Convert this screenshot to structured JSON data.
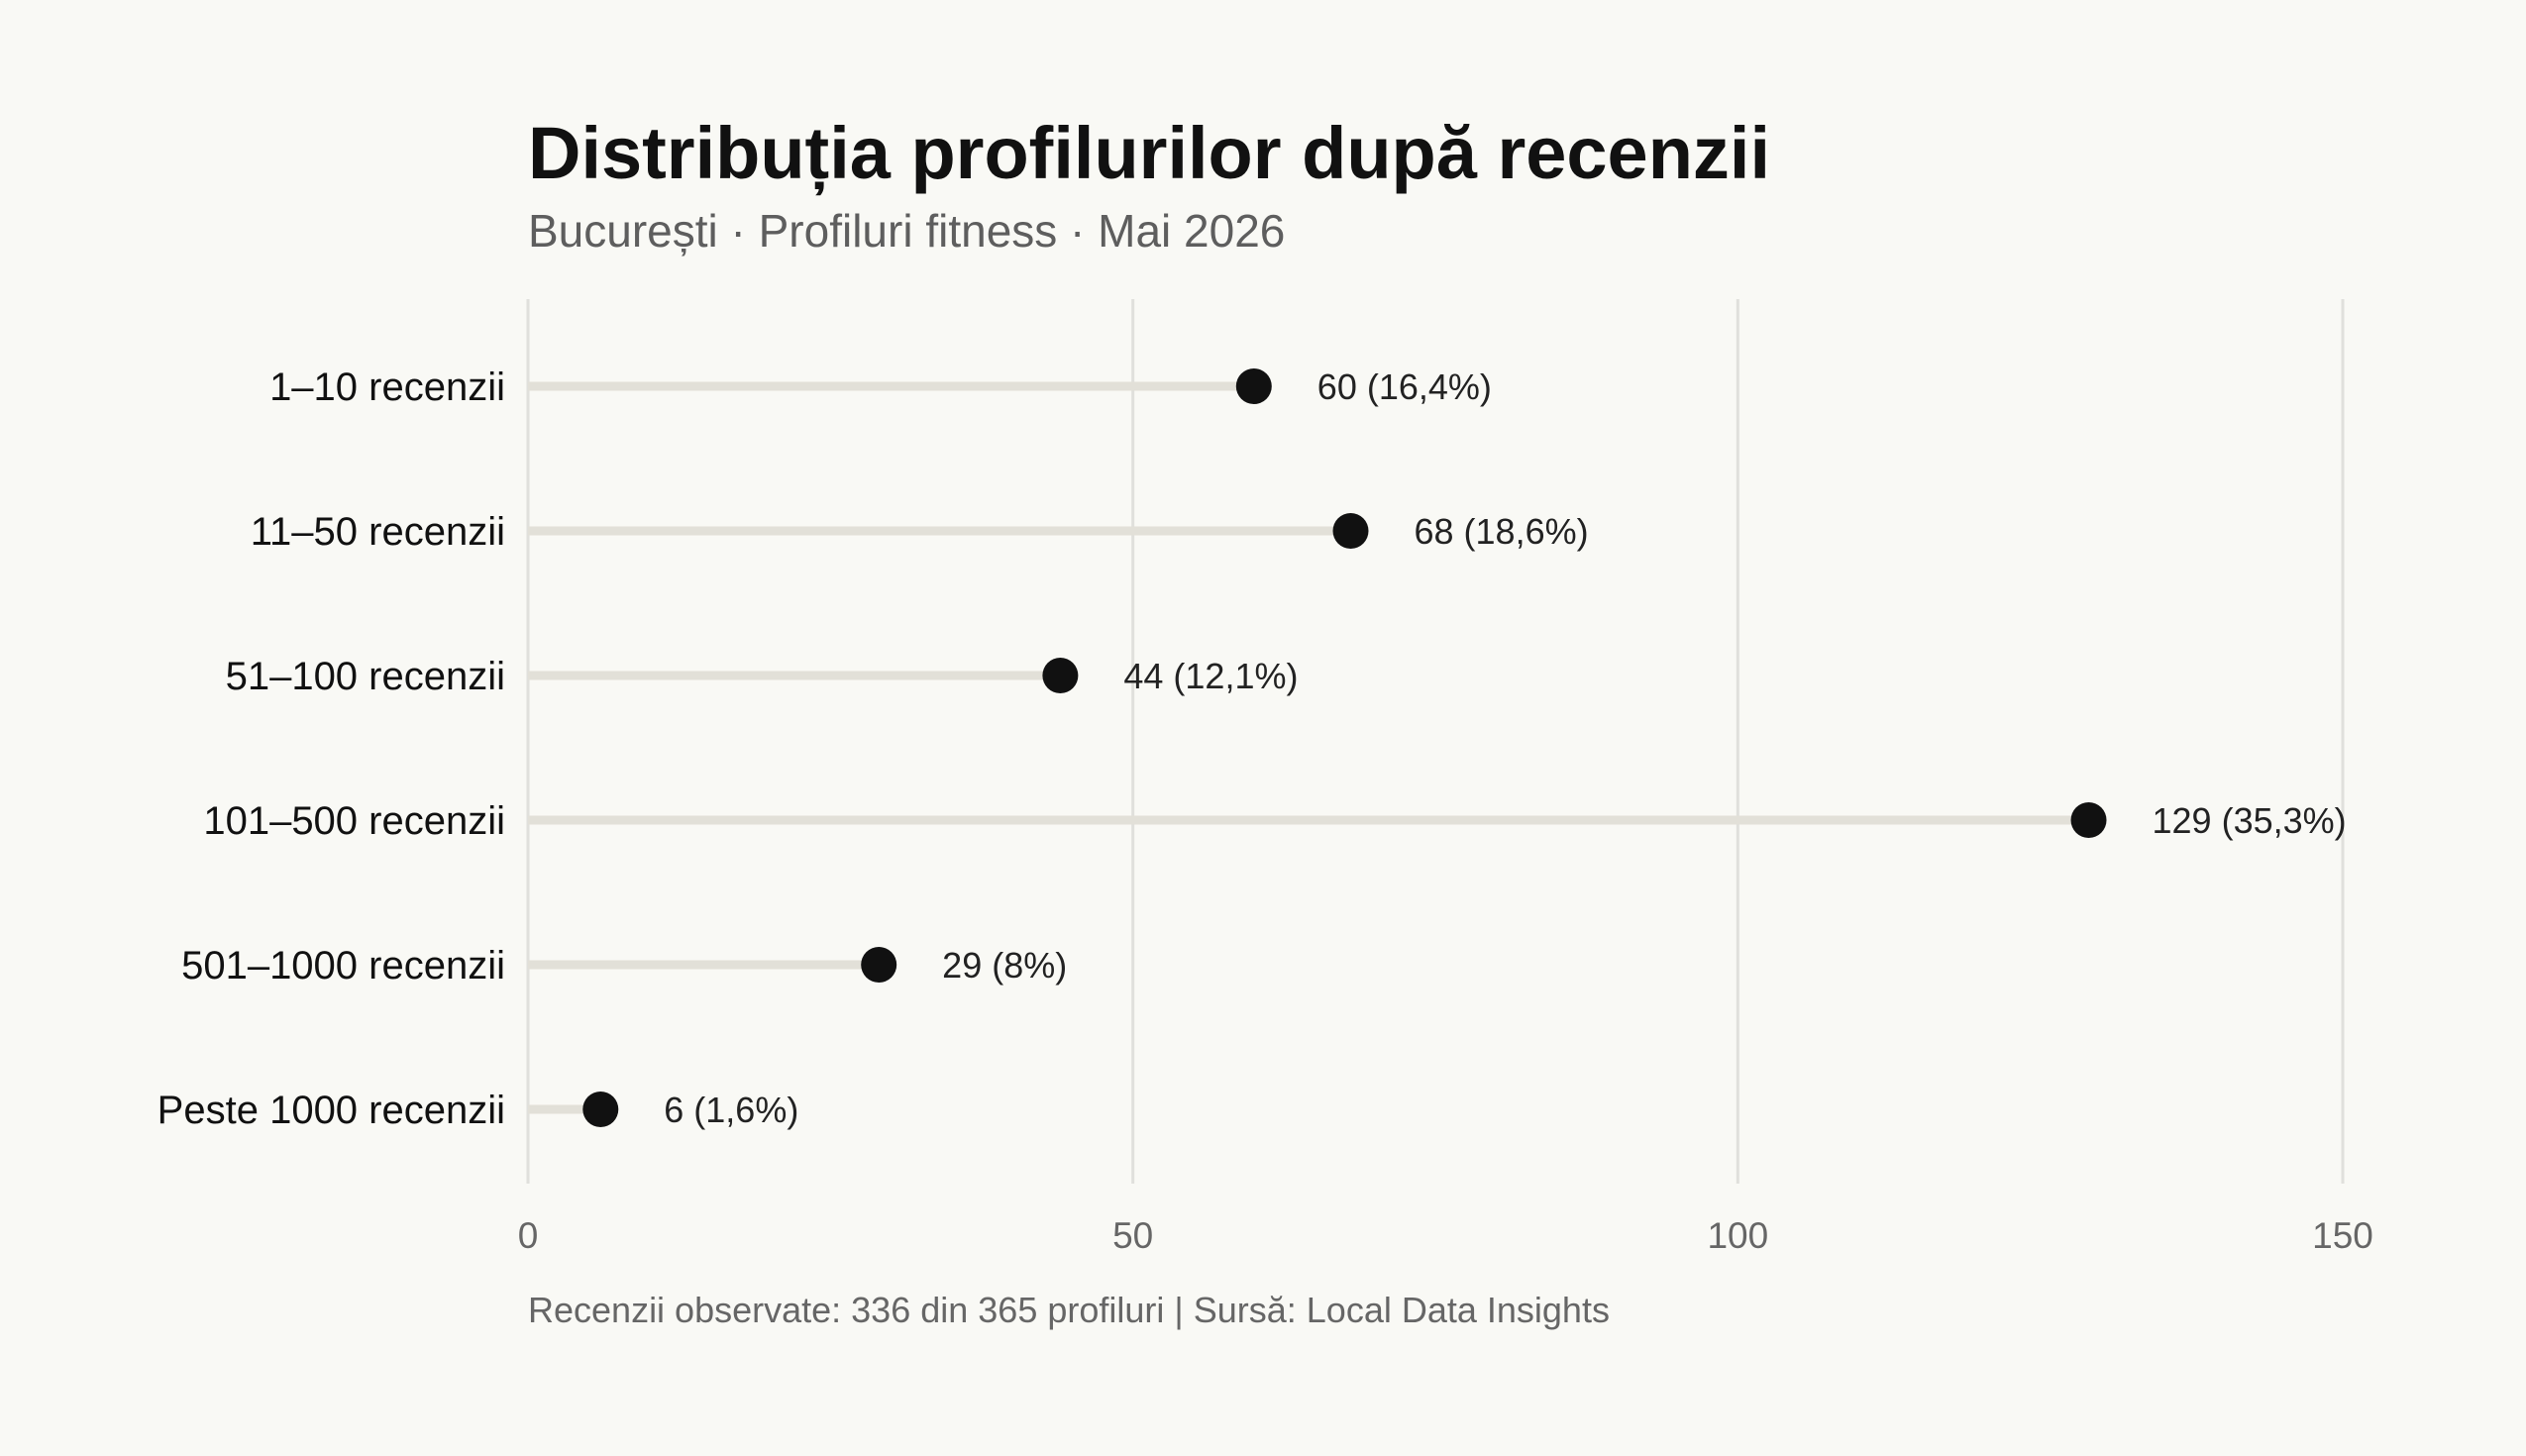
{
  "chart_data": {
    "type": "lollipop",
    "title": "Distribuția profilurilor după recenzii",
    "subtitle": "București · Profiluri fitness · Mai 2026",
    "categories": [
      "1–10 recenzii",
      "11–50 recenzii",
      "51–100 recenzii",
      "101–500 recenzii",
      "501–1000 recenzii",
      "Peste 1000 recenzii"
    ],
    "values": [
      60,
      68,
      44,
      129,
      29,
      6
    ],
    "data_labels": [
      "60 (16,4%)",
      "68 (18,6%)",
      "44 (12,1%)",
      "129 (35,3%)",
      "29 (8%)",
      "6 (1,6%)"
    ],
    "x_ticks": [
      0,
      50,
      100,
      150
    ],
    "xlim": [
      0,
      150
    ],
    "grid": "vertical",
    "footnote": "Recenzii observate: 336 din 365 profiluri | Sursă: Local Data Insights",
    "colors": {
      "background": "#f9f9f5",
      "stem": "#e2e0d8",
      "dot": "#111111",
      "grid": "#e0e0dc"
    }
  }
}
